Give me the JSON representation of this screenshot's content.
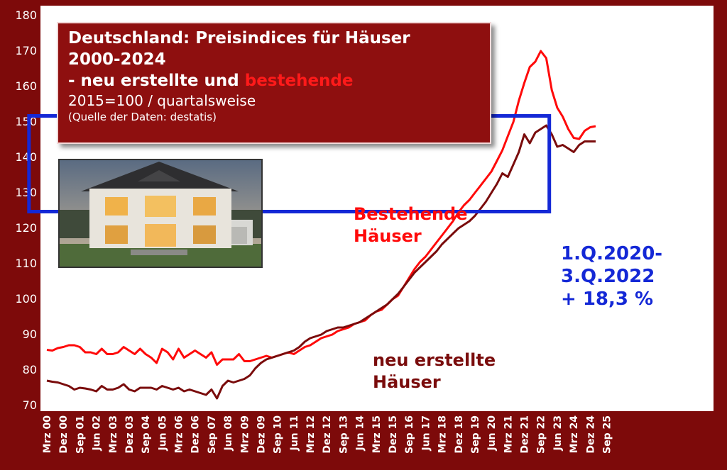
{
  "title": {
    "line1": "Deutschland: Preisindices für Häuser",
    "line2": "2000-2024",
    "line3_prefix": "- neu erstellte und ",
    "line3_red": "bestehende",
    "line4": "2015=100 / quartalsweise",
    "line5": "(Quelle der Daten: destatis)"
  },
  "labels": {
    "existing_1": "Bestehende",
    "existing_2": "Häuser",
    "new_1": "neu erstellte",
    "new_2": "Häuser",
    "anno_1": "1.Q.2020-",
    "anno_2": "3.Q.2022",
    "anno_3": "+ 18,3 %"
  },
  "colors": {
    "frame": "#7d0a0a",
    "existing": "#ff0a0a",
    "new": "#7a0c0c",
    "highlight": "#1428d6"
  },
  "photo_icon": "house-photo",
  "chart_data": {
    "type": "line",
    "title": "Deutschland: Preisindices für Häuser 2000-2024",
    "quarters_start": "Mrz 00",
    "ylim": [
      70,
      180
    ],
    "yticks": [
      70,
      80,
      90,
      100,
      110,
      120,
      130,
      140,
      150,
      160,
      170,
      180
    ],
    "xticks": [
      "Mrz 00",
      "Dez 00",
      "Sep 01",
      "Jun 02",
      "Mrz 03",
      "Dez 03",
      "Sep 04",
      "Jun 05",
      "Mrz 06",
      "Dez 06",
      "Sep 07",
      "Jun 08",
      "Mrz 09",
      "Dez 09",
      "Sep 10",
      "Jun 11",
      "Mrz 12",
      "Dez 12",
      "Sep 13",
      "Jun 14",
      "Mrz 15",
      "Dez 15",
      "Sep 16",
      "Jun 17",
      "Mrz 18",
      "Dez 18",
      "Sep 19",
      "Jun 20",
      "Mrz 21",
      "Dez 21",
      "Sep 22",
      "Jun 23",
      "Mrz 24",
      "Dez 24",
      "Sep 25"
    ],
    "grid": false,
    "highlight": {
      "from": "Mrz 20",
      "to": "Sep 22",
      "ymin": 124.5,
      "ymax": 151.5,
      "change": "+ 18,3 %"
    },
    "series": [
      {
        "name": "Bestehende Häuser",
        "values": [
          85.5,
          85.3,
          86.0,
          86.3,
          86.8,
          86.8,
          86.3,
          84.8,
          84.8,
          84.3,
          85.8,
          84.3,
          84.3,
          84.8,
          86.3,
          85.3,
          84.3,
          85.8,
          84.3,
          83.3,
          81.8,
          85.8,
          84.8,
          82.8,
          85.8,
          83.3,
          84.3,
          85.3,
          84.3,
          83.3,
          84.8,
          81.3,
          82.8,
          82.8,
          82.8,
          84.3,
          82.3,
          82.3,
          82.8,
          83.3,
          83.8,
          83.3,
          83.8,
          84.3,
          84.8,
          84.3,
          85.3,
          86.3,
          86.8,
          87.8,
          88.8,
          89.3,
          89.8,
          90.8,
          91.3,
          91.8,
          92.8,
          93.3,
          93.8,
          95.3,
          96.3,
          96.8,
          98.3,
          99.8,
          100.8,
          103.3,
          105.8,
          108.3,
          110.3,
          111.8,
          113.8,
          115.8,
          117.8,
          119.8,
          121.8,
          124.3,
          126.3,
          127.8,
          129.8,
          131.8,
          133.8,
          135.8,
          138.8,
          141.8,
          145.8,
          149.8,
          155.8,
          160.8,
          165.3,
          166.8,
          169.8,
          167.8,
          158.8,
          153.8,
          151.3,
          147.8,
          145.3,
          145.0,
          147.3,
          148.3,
          148.6
        ]
      },
      {
        "name": "neu erstellte Häuser",
        "values": [
          76.8,
          76.5,
          76.3,
          75.8,
          75.3,
          74.3,
          74.8,
          74.6,
          74.3,
          73.8,
          75.3,
          74.3,
          74.3,
          74.8,
          75.8,
          74.3,
          73.8,
          74.8,
          74.8,
          74.8,
          74.3,
          75.3,
          74.8,
          74.3,
          74.8,
          73.8,
          74.3,
          73.8,
          73.3,
          72.8,
          74.3,
          71.8,
          75.3,
          76.8,
          76.3,
          76.8,
          77.3,
          78.3,
          80.3,
          81.8,
          82.8,
          83.3,
          83.8,
          84.3,
          84.8,
          85.3,
          86.3,
          87.8,
          88.8,
          89.3,
          89.8,
          90.8,
          91.3,
          91.8,
          91.8,
          92.3,
          92.8,
          93.3,
          94.3,
          95.3,
          96.3,
          97.3,
          98.3,
          99.8,
          101.3,
          103.3,
          105.3,
          107.3,
          108.8,
          110.3,
          111.8,
          113.3,
          115.3,
          116.8,
          118.3,
          119.8,
          120.8,
          121.8,
          123.3,
          125.3,
          127.3,
          129.8,
          132.3,
          135.3,
          134.3,
          137.8,
          141.3,
          146.3,
          143.8,
          146.8,
          147.8,
          148.8,
          146.3,
          142.8,
          143.3,
          142.3,
          141.3,
          143.3,
          144.3,
          144.3,
          144.3
        ]
      }
    ]
  }
}
